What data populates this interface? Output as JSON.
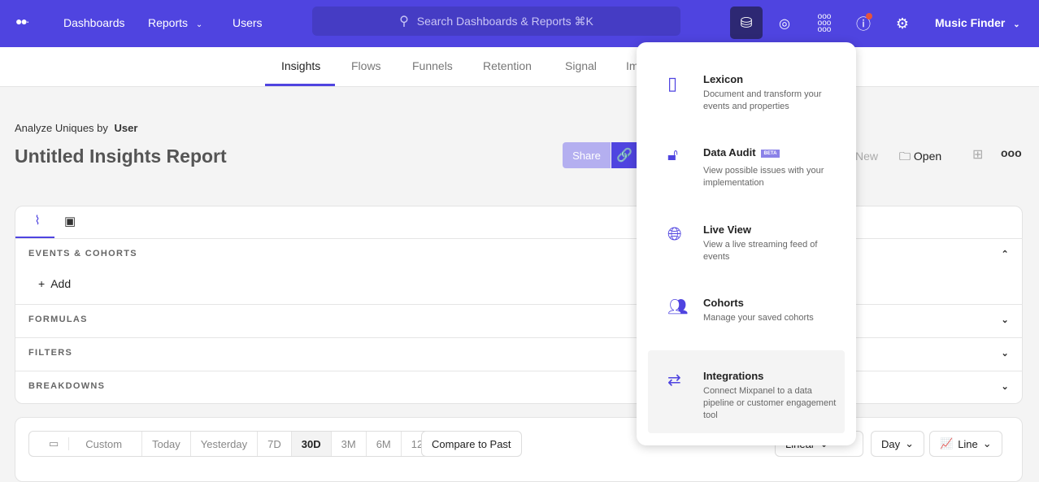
{
  "header": {
    "nav": [
      "Dashboards",
      "Reports",
      "Users"
    ],
    "search_placeholder": "Search Dashboards & Reports ⌘K",
    "project": "Music Finder",
    "brand_color": "#4f44e0"
  },
  "tabs": [
    "Insights",
    "Flows",
    "Funnels",
    "Retention",
    "Signal",
    "Im"
  ],
  "report": {
    "analyze_label": "Analyze Uniques by",
    "analyze_value": "User",
    "title": "Untitled Insights Report",
    "share": "Share",
    "new": "New",
    "open": "Open"
  },
  "sections": {
    "events": "EVENTS & COHORTS",
    "add": "Add",
    "formulas": "FORMULAS",
    "filters": "FILTERS",
    "breakdowns": "BREAKDOWNS"
  },
  "dates": [
    "Custom",
    "Today",
    "Yesterday",
    "7D",
    "30D",
    "3M",
    "6M",
    "12M"
  ],
  "selected_date": "30D",
  "compare": "Compare to Past",
  "chart_controls": {
    "scale": "Linear",
    "interval": "Day",
    "type": "Line"
  },
  "menu": [
    {
      "title": "Lexicon",
      "desc": "Document and transform your events and properties"
    },
    {
      "title": "Data Audit",
      "badge": "BETA",
      "desc": "View possible issues with your implementation"
    },
    {
      "title": "Live View",
      "desc": "View a live streaming feed of events"
    },
    {
      "title": "Cohorts",
      "desc": "Manage your saved cohorts"
    },
    {
      "title": "Integrations",
      "desc": "Connect Mixpanel to a data pipeline or customer engagement tool"
    }
  ]
}
